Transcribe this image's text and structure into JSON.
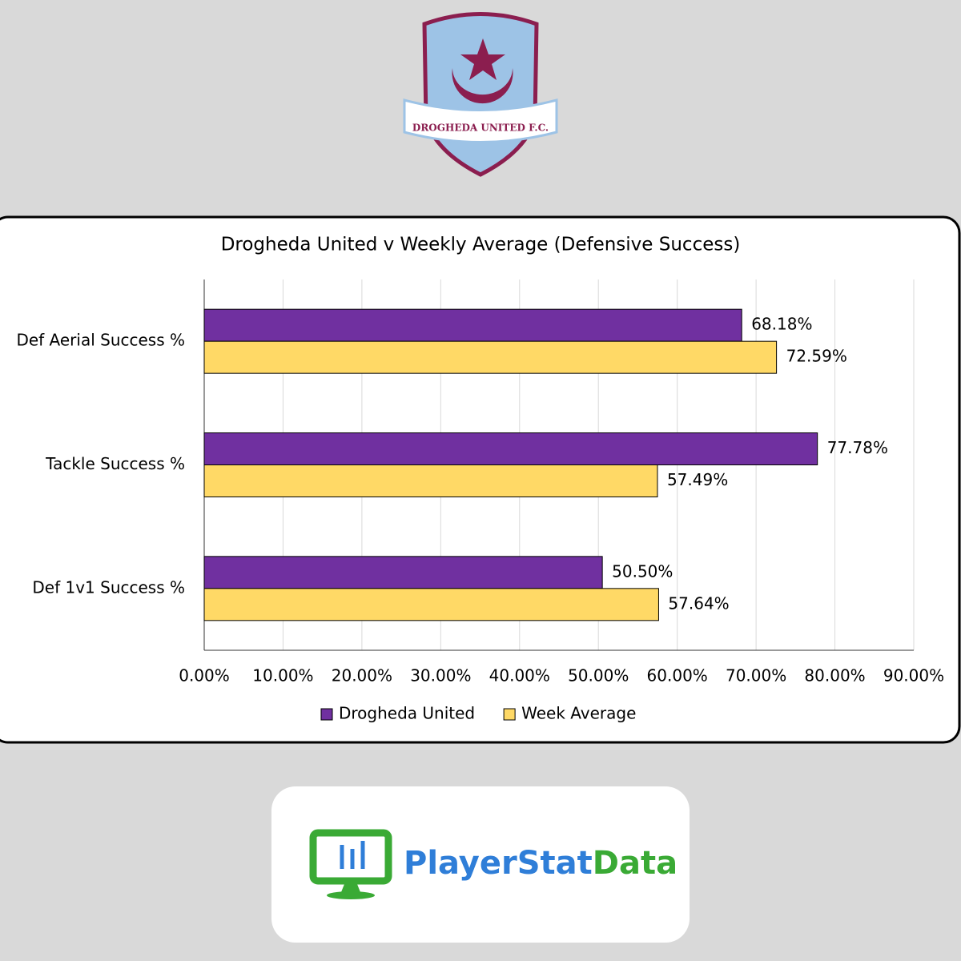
{
  "logo": {
    "text": "DROGHEDA UNITED F.C."
  },
  "chart_data": {
    "type": "hbar",
    "title": "Drogheda United v Weekly Average (Defensive Success)",
    "categories": [
      "Def Aerial Success %",
      "Tackle Success %",
      "Def 1v1 Success %"
    ],
    "series": [
      {
        "name": "Drogheda United",
        "color": "#7030a0",
        "values": [
          68.18,
          77.78,
          50.5
        ],
        "value_labels": [
          "68.18%",
          "77.78%",
          "50.50%"
        ]
      },
      {
        "name": "Week Average",
        "color": "#ffd966",
        "values": [
          72.59,
          57.49,
          57.64
        ],
        "value_labels": [
          "72.59%",
          "57.49%",
          "57.64%"
        ]
      }
    ],
    "xlim": [
      0,
      90
    ],
    "xticks": [
      {
        "value": 0,
        "label": "0.00%"
      },
      {
        "value": 10,
        "label": "10.00%"
      },
      {
        "value": 20,
        "label": "20.00%"
      },
      {
        "value": 30,
        "label": "30.00%"
      },
      {
        "value": 40,
        "label": "40.00%"
      },
      {
        "value": 50,
        "label": "50.00%"
      },
      {
        "value": 60,
        "label": "60.00%"
      },
      {
        "value": 70,
        "label": "70.00%"
      },
      {
        "value": 80,
        "label": "80.00%"
      },
      {
        "value": 90,
        "label": "90.00%"
      }
    ],
    "grid": true,
    "legend": "bottom"
  },
  "footer": {
    "brand_parts": [
      "PlayerStat",
      "Data"
    ]
  }
}
